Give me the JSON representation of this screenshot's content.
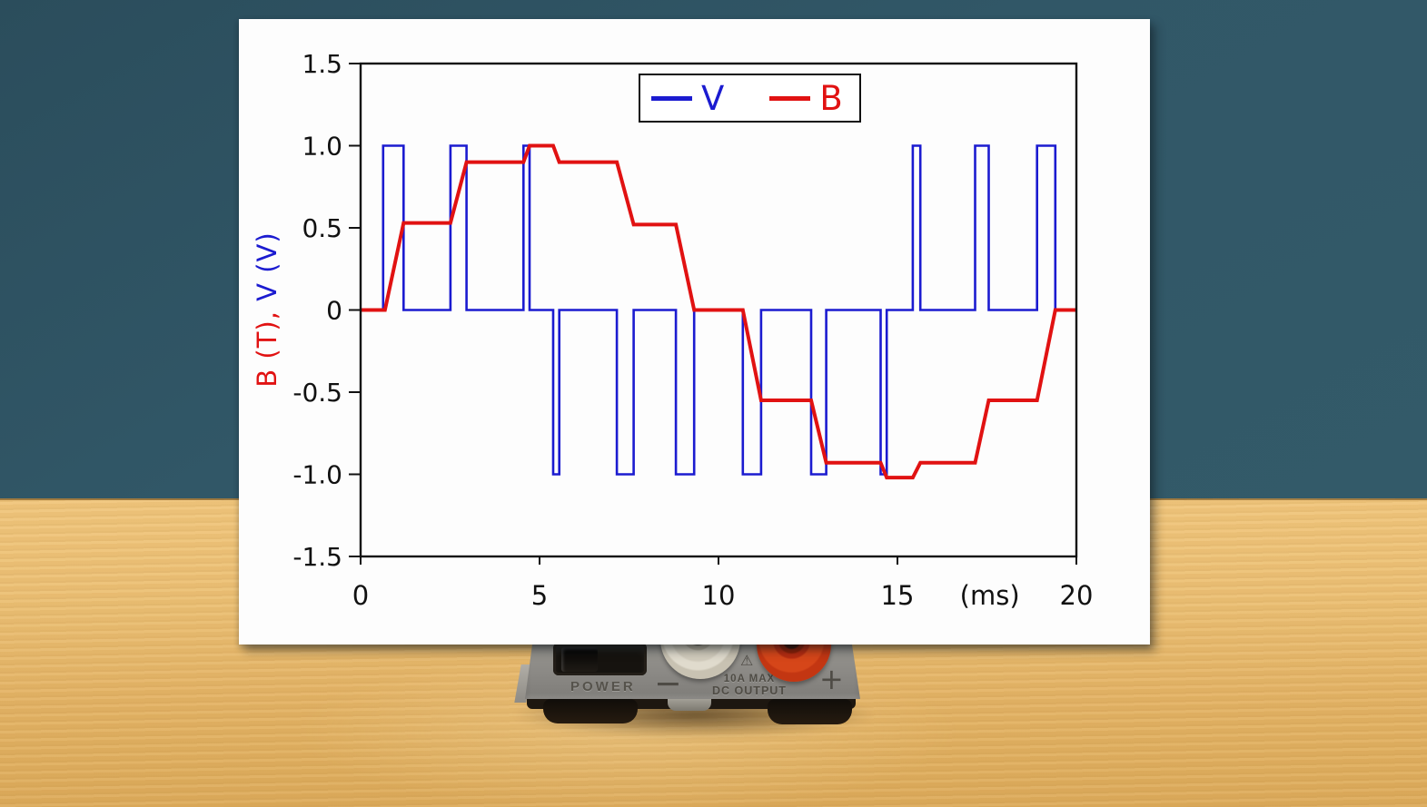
{
  "chart_data": {
    "type": "line",
    "title": "",
    "xlabel": "(ms)",
    "xlabel_position": 17.58,
    "ylabel": "B (T), V (V)",
    "ylabel_parts": [
      {
        "text": "B (T),",
        "color": "#e11212"
      },
      {
        "text": " V (V)",
        "color": "#1b1bd0"
      }
    ],
    "xlim": [
      0,
      20
    ],
    "ylim": [
      -1.5,
      1.5
    ],
    "grid": false,
    "xticks": [
      {
        "v": 0,
        "label": "0"
      },
      {
        "v": 5,
        "label": "5"
      },
      {
        "v": 10,
        "label": "10"
      },
      {
        "v": 15,
        "label": "15"
      },
      {
        "v": 20,
        "label": "20"
      }
    ],
    "yticks": [
      {
        "v": 1.5,
        "label": "1.5"
      },
      {
        "v": 1.0,
        "label": "1.0"
      },
      {
        "v": 0.5,
        "label": "0.5"
      },
      {
        "v": 0,
        "label": "0"
      },
      {
        "v": -0.5,
        "label": "-0.5"
      },
      {
        "v": -1.0,
        "label": "-1.0"
      },
      {
        "v": -1.5,
        "label": "-1.5"
      }
    ],
    "legend_position": "upper center",
    "legend": [
      {
        "label": "V",
        "color": "#1b1bd0"
      },
      {
        "label": "B",
        "color": "#e11212"
      }
    ],
    "series": [
      {
        "name": "V",
        "color": "#1b1bd0",
        "stroke_width": 2.6,
        "points": [
          [
            0,
            0
          ],
          [
            0.63,
            0
          ],
          [
            0.63,
            1
          ],
          [
            1.2,
            1
          ],
          [
            1.2,
            0
          ],
          [
            2.51,
            0
          ],
          [
            2.51,
            1
          ],
          [
            2.96,
            1
          ],
          [
            2.96,
            0
          ],
          [
            4.55,
            0
          ],
          [
            4.55,
            1
          ],
          [
            4.72,
            1
          ],
          [
            4.72,
            0
          ],
          [
            5.38,
            0
          ],
          [
            5.38,
            -1
          ],
          [
            5.55,
            -1
          ],
          [
            5.55,
            0
          ],
          [
            7.16,
            0
          ],
          [
            7.16,
            -1
          ],
          [
            7.63,
            -1
          ],
          [
            7.63,
            0
          ],
          [
            8.81,
            0
          ],
          [
            8.81,
            -1
          ],
          [
            9.32,
            -1
          ],
          [
            9.32,
            0
          ],
          [
            10.68,
            0
          ],
          [
            10.68,
            -1
          ],
          [
            11.19,
            -1
          ],
          [
            11.19,
            0
          ],
          [
            12.59,
            0
          ],
          [
            12.59,
            -1
          ],
          [
            13.01,
            -1
          ],
          [
            13.01,
            0
          ],
          [
            14.53,
            0
          ],
          [
            14.53,
            -1
          ],
          [
            14.7,
            -1
          ],
          [
            14.7,
            0
          ],
          [
            15.43,
            0
          ],
          [
            15.43,
            1
          ],
          [
            15.64,
            1
          ],
          [
            15.64,
            0
          ],
          [
            17.17,
            0
          ],
          [
            17.17,
            1
          ],
          [
            17.55,
            1
          ],
          [
            17.55,
            0
          ],
          [
            18.9,
            0
          ],
          [
            18.9,
            1
          ],
          [
            19.41,
            1
          ],
          [
            19.41,
            0
          ],
          [
            20,
            0
          ]
        ]
      },
      {
        "name": "B",
        "color": "#e11212",
        "stroke_width": 4,
        "points": [
          [
            0,
            0
          ],
          [
            0.68,
            0
          ],
          [
            1.2,
            0.53
          ],
          [
            2.51,
            0.53
          ],
          [
            2.96,
            0.9
          ],
          [
            4.55,
            0.9
          ],
          [
            4.72,
            1.0
          ],
          [
            5.38,
            1.0
          ],
          [
            5.55,
            0.9
          ],
          [
            7.16,
            0.9
          ],
          [
            7.63,
            0.52
          ],
          [
            8.81,
            0.52
          ],
          [
            9.32,
            0
          ],
          [
            10.68,
            0
          ],
          [
            11.19,
            -0.55
          ],
          [
            12.59,
            -0.55
          ],
          [
            13.01,
            -0.93
          ],
          [
            14.53,
            -0.93
          ],
          [
            14.7,
            -1.02
          ],
          [
            15.43,
            -1.02
          ],
          [
            15.64,
            -0.93
          ],
          [
            17.17,
            -0.93
          ],
          [
            17.55,
            -0.55
          ],
          [
            18.9,
            -0.55
          ],
          [
            19.41,
            0
          ],
          [
            20,
            0
          ]
        ]
      }
    ]
  },
  "device": {
    "power_label": "POWER",
    "minus_label": "−",
    "plus_label": "+",
    "rating_line1": "10A MAX",
    "rating_line2": "DC OUTPUT",
    "warning_icon": "⚠"
  },
  "colors": {
    "wall": "#315767",
    "desk": "#e7ba6c",
    "panel": "#fdfdfd",
    "axis": "#111111",
    "device_gray": "#8b8985",
    "jack_negative": "#d8d2c3",
    "jack_positive": "#cc3914"
  }
}
